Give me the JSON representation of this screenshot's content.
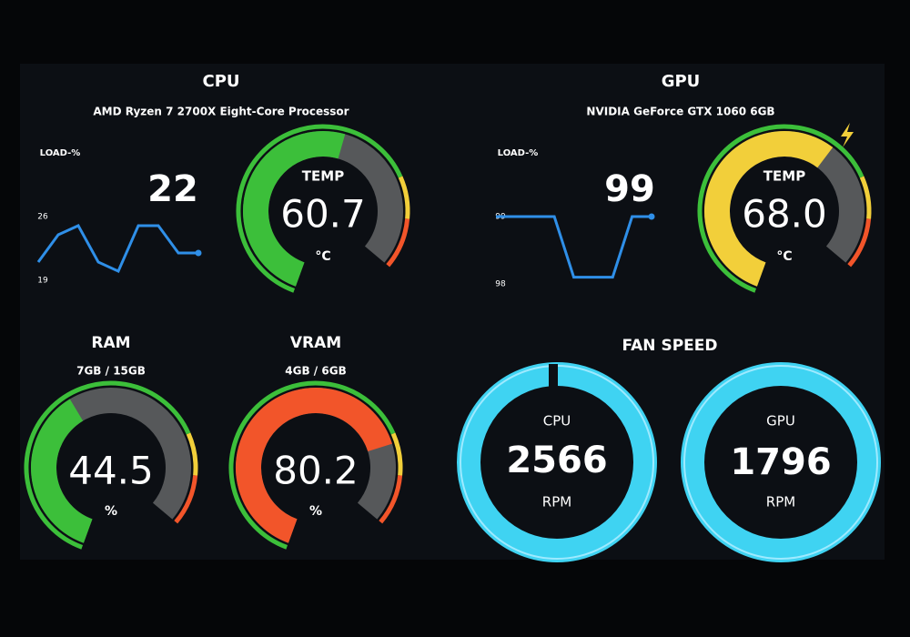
{
  "cpu": {
    "title": "CPU",
    "model": "AMD Ryzen 7 2700X Eight-Core Processor",
    "load_label": "LOAD-%",
    "load": 22,
    "load_ticks": [
      26,
      19
    ],
    "load_history": [
      21,
      24,
      25,
      21,
      20,
      25,
      25,
      22,
      22
    ],
    "temp_label": "TEMP",
    "temp": {
      "value": 60.7,
      "label": "60.7"
    },
    "temp_unit": "°C",
    "temp_color": "#3cbf3a"
  },
  "gpu": {
    "title": "GPU",
    "model": "NVIDIA GeForce GTX 1060 6GB",
    "load_label": "LOAD-%",
    "load": 99,
    "load_ticks": [
      99,
      98
    ],
    "load_history": [
      99,
      99,
      99,
      99,
      98.1,
      98.1,
      98.1,
      99,
      99
    ],
    "temp_label": "TEMP",
    "temp": {
      "value": 68.0,
      "label": "68.0"
    },
    "temp_unit": "°C",
    "temp_color": "#f2cf3a"
  },
  "ram": {
    "title": "RAM",
    "usage": "7GB / 15GB",
    "value": {
      "value": 44.5,
      "label": "44.5"
    },
    "unit": "%",
    "color": "#3cbf3a"
  },
  "vram": {
    "title": "VRAM",
    "usage": "4GB / 6GB",
    "value": {
      "value": 80.2,
      "label": "80.2"
    },
    "unit": "%",
    "color": "#f2552a"
  },
  "fan_speed": {
    "title": "FAN SPEED",
    "cpu": {
      "label": "CPU",
      "rpm": 2566,
      "unit": "RPM"
    },
    "gpu": {
      "label": "GPU",
      "rpm": 1796,
      "unit": "RPM"
    }
  },
  "gauge_range": [
    0,
    100
  ]
}
